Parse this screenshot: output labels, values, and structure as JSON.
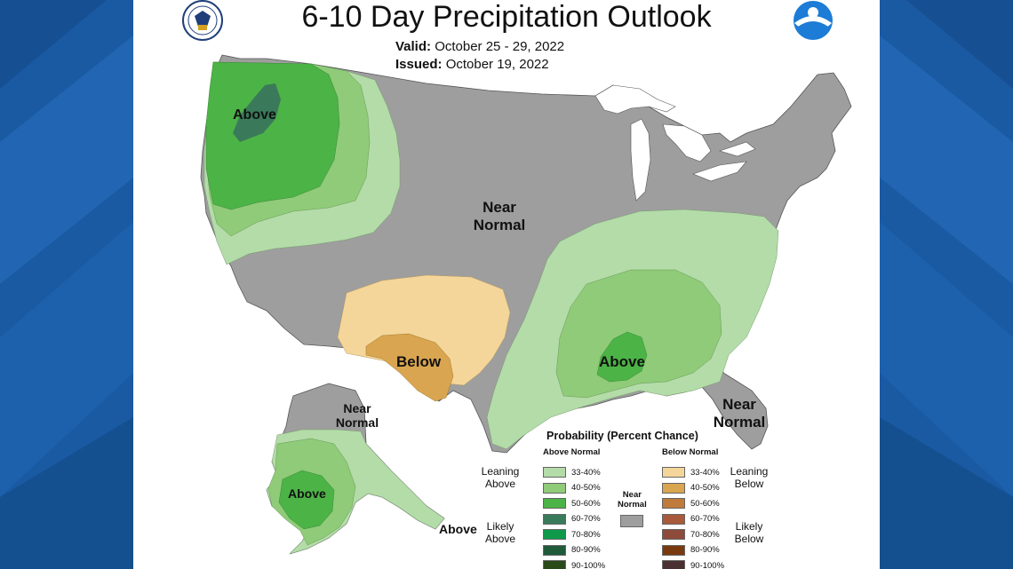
{
  "header": {
    "title": "6-10 Day Precipitation Outlook",
    "valid_label": "Valid:",
    "valid_value": "October 25 - 29, 2022",
    "issued_label": "Issued:",
    "issued_value": "October 19, 2022"
  },
  "map": {
    "labels": {
      "above_pnw": "Above",
      "near_normal_central_1": "Near",
      "near_normal_central_2": "Normal",
      "below_sw": "Below",
      "above_southeast": "Above",
      "near_normal_florida_1": "Near",
      "near_normal_florida_2": "Normal",
      "near_normal_alaska_1": "Near",
      "near_normal_alaska_2": "Normal",
      "above_alaska": "Above",
      "above_alaska_se": "Above"
    },
    "colors": {
      "near_normal": "#9e9e9e",
      "above_33_40": "#b3dca8",
      "above_40_50": "#8fcb78",
      "above_50_60": "#4cb346",
      "above_60_70": "#3a7a5a",
      "below_33_40": "#f5d69a",
      "below_40_50": "#d9a550"
    }
  },
  "legend": {
    "title": "Probability (Percent Chance)",
    "above_header": "Above Normal",
    "below_header": "Below Normal",
    "near_header_1": "Near",
    "near_header_2": "Normal",
    "leaning_above_1": "Leaning",
    "leaning_above_2": "Above",
    "likely_above_1": "Likely",
    "likely_above_2": "Above",
    "leaning_below_1": "Leaning",
    "leaning_below_2": "Below",
    "likely_below_1": "Likely",
    "likely_below_2": "Below",
    "above_rows": [
      {
        "label": "33-40%",
        "color": "#b3dca8"
      },
      {
        "label": "40-50%",
        "color": "#8fcb78"
      },
      {
        "label": "50-60%",
        "color": "#4cb346"
      },
      {
        "label": "60-70%",
        "color": "#3a7a5a"
      },
      {
        "label": "70-80%",
        "color": "#0e9a4a"
      },
      {
        "label": "80-90%",
        "color": "#1f5a3a"
      },
      {
        "label": "90-100%",
        "color": "#2a4a1a"
      }
    ],
    "below_rows": [
      {
        "label": "33-40%",
        "color": "#f5d69a"
      },
      {
        "label": "40-50%",
        "color": "#d9a550"
      },
      {
        "label": "50-60%",
        "color": "#c07a3a"
      },
      {
        "label": "60-70%",
        "color": "#a85a3a"
      },
      {
        "label": "70-80%",
        "color": "#8e4a3a"
      },
      {
        "label": "80-90%",
        "color": "#7a3a10"
      },
      {
        "label": "90-100%",
        "color": "#4a3030"
      }
    ]
  }
}
